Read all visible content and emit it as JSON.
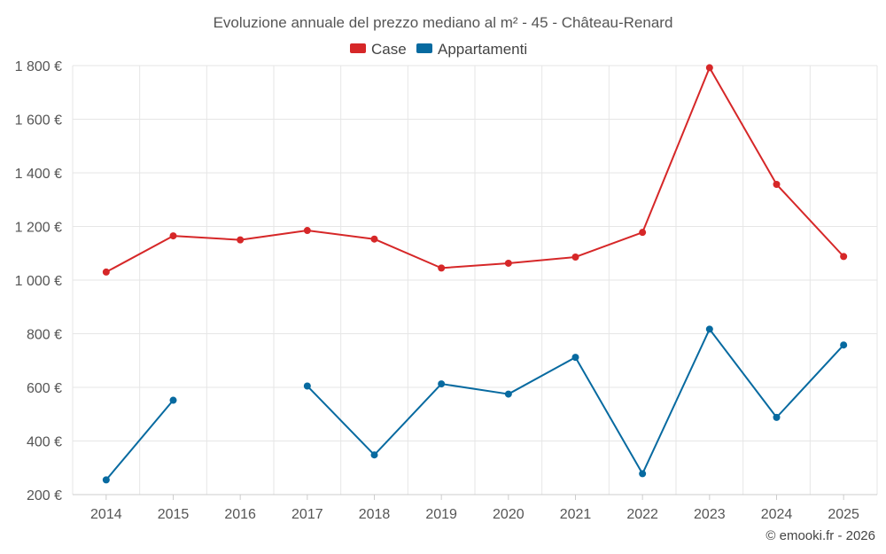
{
  "chart_data": {
    "type": "line",
    "title": "Evoluzione annuale del prezzo mediano al m² - 45 - Château-Renard",
    "categories": [
      "2014",
      "2015",
      "2016",
      "2017",
      "2018",
      "2019",
      "2020",
      "2021",
      "2022",
      "2023",
      "2024",
      "2025"
    ],
    "series": [
      {
        "name": "Case",
        "color": "#d62728",
        "values": [
          1030,
          1165,
          1150,
          1185,
          1153,
          1045,
          1063,
          1086,
          1178,
          1792,
          1357,
          1088
        ]
      },
      {
        "name": "Appartamenti",
        "color": "#076aa0",
        "values": [
          255,
          552,
          null,
          605,
          348,
          613,
          575,
          712,
          278,
          817,
          488,
          758
        ]
      }
    ],
    "ylim": [
      200,
      1800
    ],
    "yticks": [
      200,
      400,
      600,
      800,
      1000,
      1200,
      1400,
      1600,
      1800
    ],
    "ytick_labels": [
      "200 €",
      "400 €",
      "600 €",
      "800 €",
      "1 000 €",
      "1 200 €",
      "1 400 €",
      "1 600 €",
      "1 800 €"
    ],
    "xlabel": "",
    "ylabel": "",
    "grid": true,
    "legend_position": "top-center",
    "credit": "© emooki.fr - 2026"
  }
}
